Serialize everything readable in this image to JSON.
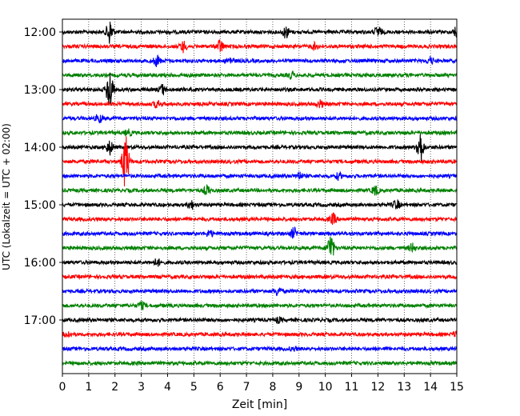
{
  "chart_data": {
    "type": "line",
    "title": "",
    "xlabel": "Zeit  [min]",
    "ylabel": "UTC (Lokalzeit = UTC + 02:00)",
    "xlim": [
      0,
      15
    ],
    "x_ticks": [
      0,
      1,
      2,
      3,
      4,
      5,
      6,
      7,
      8,
      9,
      10,
      11,
      12,
      13,
      14,
      15
    ],
    "x_tick_labels": [
      "0",
      "1",
      "2",
      "3",
      "4",
      "5",
      "6",
      "7",
      "8",
      "9",
      "10",
      "11",
      "12",
      "13",
      "14",
      "15"
    ],
    "y_ticks": [
      "12:00",
      "13:00",
      "14:00",
      "15:00",
      "16:00",
      "17:00"
    ],
    "grid": "vertical dotted at each minute",
    "trace_colors": [
      "#000000",
      "#ff0000",
      "#0000ff",
      "#008000"
    ],
    "traces": [
      {
        "start": "12:00",
        "color": "#000000",
        "events": [
          {
            "t": 1.8,
            "amp": 2.2
          },
          {
            "t": 8.5,
            "amp": 1.0
          },
          {
            "t": 12.0,
            "amp": 1.0
          },
          {
            "t": 15.0,
            "amp": 1.0
          }
        ]
      },
      {
        "start": "12:15",
        "color": "#ff0000",
        "events": [
          {
            "t": 4.6,
            "amp": 0.9
          },
          {
            "t": 6.0,
            "amp": 1.1
          },
          {
            "t": 9.6,
            "amp": 0.5
          }
        ]
      },
      {
        "start": "12:30",
        "color": "#0000ff",
        "events": [
          {
            "t": 3.6,
            "amp": 0.9
          },
          {
            "t": 6.4,
            "amp": 0.6
          },
          {
            "t": 14.0,
            "amp": 0.6
          }
        ]
      },
      {
        "start": "12:45",
        "color": "#008000",
        "events": [
          {
            "t": 8.7,
            "amp": 0.5
          }
        ]
      },
      {
        "start": "13:00",
        "color": "#000000",
        "events": [
          {
            "t": 1.8,
            "amp": 4.0
          },
          {
            "t": 3.8,
            "amp": 0.8
          }
        ]
      },
      {
        "start": "13:15",
        "color": "#ff0000",
        "events": [
          {
            "t": 3.6,
            "amp": 0.6
          },
          {
            "t": 9.8,
            "amp": 0.6
          }
        ]
      },
      {
        "start": "13:30",
        "color": "#0000ff",
        "events": [
          {
            "t": 1.4,
            "amp": 0.7
          }
        ]
      },
      {
        "start": "13:45",
        "color": "#008000",
        "events": [
          {
            "t": 2.5,
            "amp": 0.5
          }
        ]
      },
      {
        "start": "14:00",
        "color": "#000000",
        "events": [
          {
            "t": 1.8,
            "amp": 1.2
          },
          {
            "t": 13.6,
            "amp": 3.0
          }
        ]
      },
      {
        "start": "14:15",
        "color": "#ff0000",
        "events": [
          {
            "t": 2.4,
            "amp": 5.0
          }
        ]
      },
      {
        "start": "14:30",
        "color": "#0000ff",
        "events": [
          {
            "t": 9.0,
            "amp": 0.6
          },
          {
            "t": 10.5,
            "amp": 0.5
          }
        ]
      },
      {
        "start": "14:45",
        "color": "#008000",
        "events": [
          {
            "t": 5.5,
            "amp": 0.8
          },
          {
            "t": 11.9,
            "amp": 0.8
          }
        ]
      },
      {
        "start": "15:00",
        "color": "#000000",
        "events": [
          {
            "t": 4.9,
            "amp": 0.7
          },
          {
            "t": 12.7,
            "amp": 0.8
          }
        ]
      },
      {
        "start": "15:15",
        "color": "#ff0000",
        "events": [
          {
            "t": 10.3,
            "amp": 0.9
          }
        ]
      },
      {
        "start": "15:30",
        "color": "#0000ff",
        "events": [
          {
            "t": 5.6,
            "amp": 0.6
          },
          {
            "t": 8.8,
            "amp": 0.9
          }
        ]
      },
      {
        "start": "15:45",
        "color": "#008000",
        "events": [
          {
            "t": 10.2,
            "amp": 2.5
          },
          {
            "t": 13.3,
            "amp": 0.7
          }
        ]
      },
      {
        "start": "16:00",
        "color": "#000000",
        "events": [
          {
            "t": 3.6,
            "amp": 0.6
          }
        ]
      },
      {
        "start": "16:15",
        "color": "#ff0000",
        "events": []
      },
      {
        "start": "16:30",
        "color": "#0000ff",
        "events": [
          {
            "t": 8.2,
            "amp": 0.8
          }
        ]
      },
      {
        "start": "16:45",
        "color": "#008000",
        "events": [
          {
            "t": 3.0,
            "amp": 0.6
          }
        ]
      },
      {
        "start": "17:00",
        "color": "#000000",
        "events": [
          {
            "t": 8.2,
            "amp": 0.4
          }
        ]
      },
      {
        "start": "17:15",
        "color": "#ff0000",
        "events": [
          {
            "t": 0.2,
            "amp": 0.5
          },
          {
            "t": 15.0,
            "amp": 0.6
          }
        ]
      },
      {
        "start": "17:30",
        "color": "#0000ff",
        "events": [
          {
            "t": 8.8,
            "amp": 0.3
          }
        ]
      },
      {
        "start": "17:45",
        "color": "#008000",
        "events": []
      }
    ]
  }
}
